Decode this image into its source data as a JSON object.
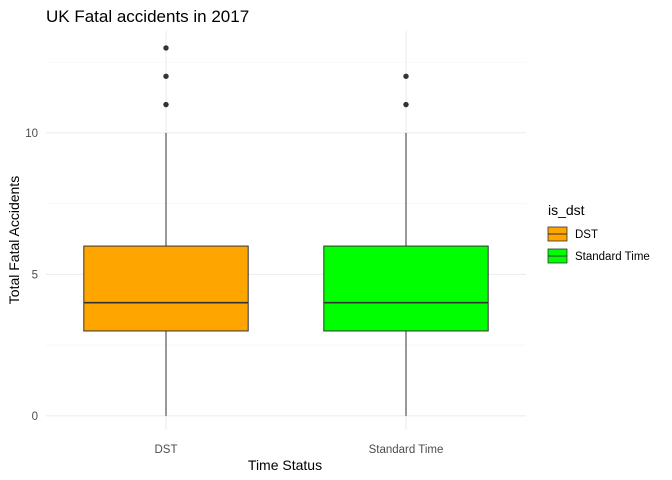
{
  "chart_data": {
    "type": "box",
    "title": "UK Fatal accidents in 2017",
    "xlabel": "Time Status",
    "ylabel": "Total Fatal Accidents",
    "categories": [
      "DST",
      "Standard Time"
    ],
    "y_ticks": [
      0,
      5,
      10
    ],
    "ylim": [
      -0.5,
      13.6
    ],
    "grid": true,
    "legend": {
      "title": "is_dst",
      "placement": "right",
      "entries": [
        "DST",
        "Standard Time"
      ]
    },
    "series": [
      {
        "category": "DST",
        "color": "#FFA500",
        "min": 0,
        "q1": 3,
        "median": 4,
        "q3": 6,
        "max": 10,
        "outliers": [
          11,
          12,
          13
        ]
      },
      {
        "category": "Standard Time",
        "color": "#00FF00",
        "min": 0,
        "q1": 3,
        "median": 4,
        "q3": 6,
        "max": 10,
        "outliers": [
          11,
          12
        ]
      }
    ]
  }
}
